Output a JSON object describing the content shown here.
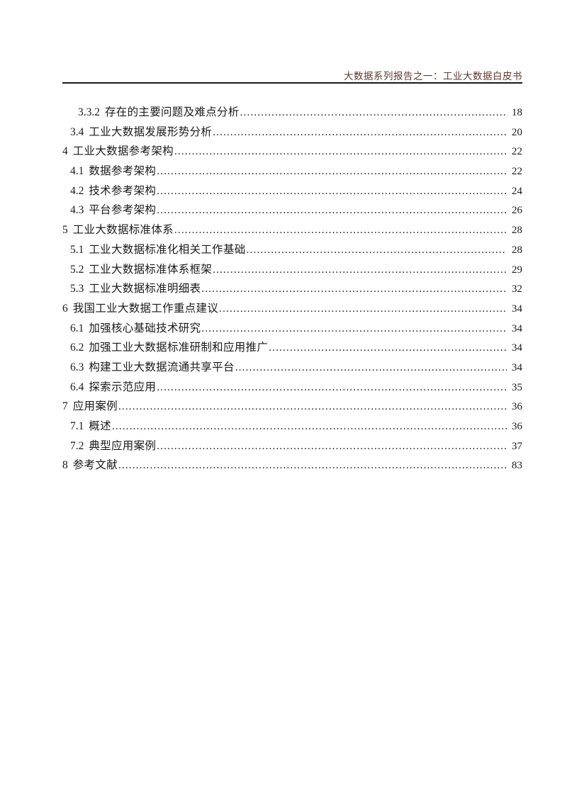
{
  "header": {
    "text": "大数据系列报告之一：工业大数据白皮书"
  },
  "colors": {
    "header_text": "#5e3a30",
    "body_text": "#1a1a1a",
    "rule": "#1a1a1a"
  },
  "toc": {
    "entries": [
      {
        "num": "3.3.2",
        "title": "存在的主要问题及难点分析",
        "page": "18",
        "level": 2
      },
      {
        "num": "3.4",
        "title": "工业大数据发展形势分析",
        "page": "20",
        "level": 1
      },
      {
        "num": "4",
        "title": "工业大数据参考架构",
        "page": "22",
        "level": 0
      },
      {
        "num": "4.1",
        "title": "数据参考架构",
        "page": "22",
        "level": 1
      },
      {
        "num": "4.2",
        "title": "技术参考架构",
        "page": "24",
        "level": 1
      },
      {
        "num": "4.3",
        "title": "平台参考架构",
        "page": "26",
        "level": 1
      },
      {
        "num": "5",
        "title": "工业大数据标准体系",
        "page": "28",
        "level": 0
      },
      {
        "num": "5.1",
        "title": "工业大数据标准化相关工作基础",
        "page": "28",
        "level": 1
      },
      {
        "num": "5.2",
        "title": "工业大数据标准体系框架",
        "page": "29",
        "level": 1
      },
      {
        "num": "5.3",
        "title": "工业大数据标准明细表",
        "page": "32",
        "level": 1
      },
      {
        "num": "6",
        "title": "我国工业大数据工作重点建议",
        "page": "34",
        "level": 0
      },
      {
        "num": "6.1",
        "title": "加强核心基础技术研究",
        "page": "34",
        "level": 1
      },
      {
        "num": "6.2",
        "title": "加强工业大数据标准研制和应用推广",
        "page": "34",
        "level": 1
      },
      {
        "num": "6.3",
        "title": "构建工业大数据流通共享平台",
        "page": "34",
        "level": 1
      },
      {
        "num": "6.4",
        "title": "探索示范应用",
        "page": "35",
        "level": 1
      },
      {
        "num": "7",
        "title": "应用案例",
        "page": "36",
        "level": 0
      },
      {
        "num": "7.1",
        "title": "概述",
        "page": "36",
        "level": 1
      },
      {
        "num": "7.2",
        "title": "典型应用案例",
        "page": "37",
        "level": 1
      },
      {
        "num": "8",
        "title": "参考文献",
        "page": "83",
        "level": 0
      }
    ]
  }
}
